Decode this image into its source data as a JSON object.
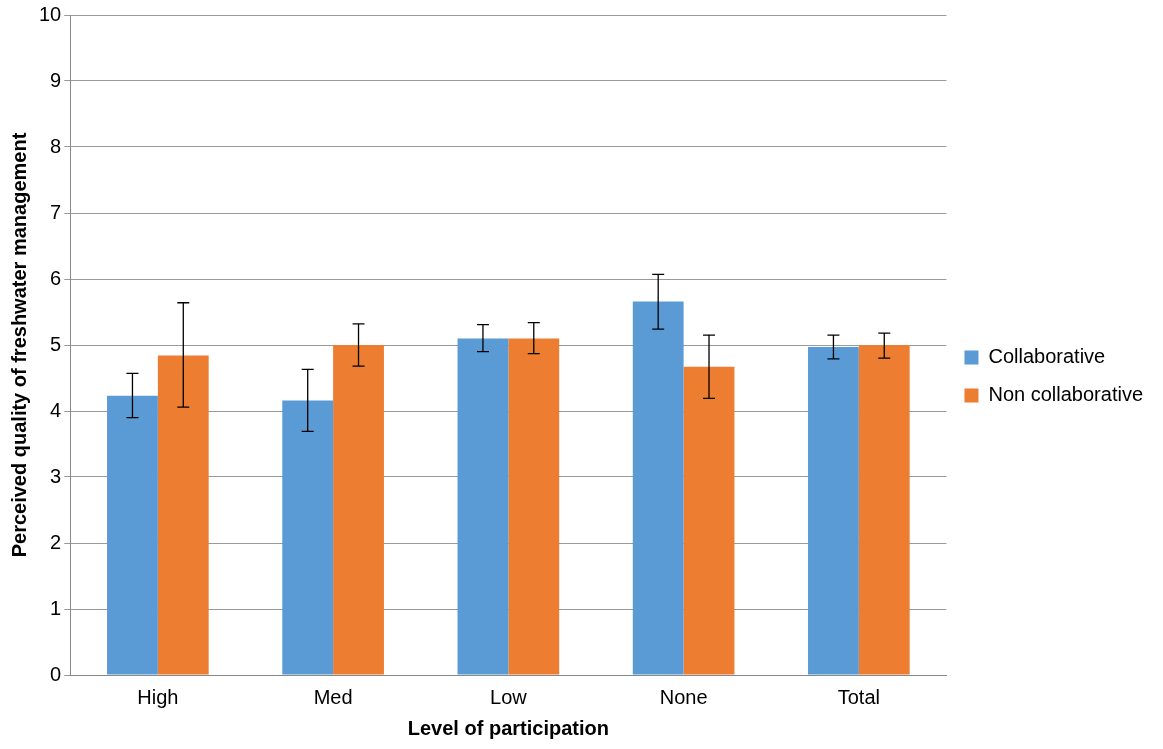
{
  "chart_data": {
    "type": "bar",
    "xlabel": "Level of participation",
    "ylabel": "Perceived quality of freshwater management",
    "categories": [
      "High",
      "Med",
      "Low",
      "None",
      "Total"
    ],
    "series": [
      {
        "name": "Collaborative",
        "color": "#5b9bd5",
        "values": [
          4.23,
          4.16,
          5.1,
          5.66,
          4.97
        ],
        "errors": [
          [
            3.9,
            4.57
          ],
          [
            3.69,
            4.63
          ],
          [
            4.9,
            5.31
          ],
          [
            5.24,
            6.07
          ],
          [
            4.79,
            5.15
          ]
        ]
      },
      {
        "name": "Non collaborative",
        "color": "#ed7d31",
        "values": [
          4.84,
          5.0,
          5.1,
          4.67,
          5.0
        ],
        "errors": [
          [
            4.06,
            5.64
          ],
          [
            4.68,
            5.32
          ],
          [
            4.87,
            5.34
          ],
          [
            4.19,
            5.15
          ],
          [
            4.8,
            5.18
          ]
        ]
      }
    ],
    "ylim": [
      0,
      10
    ],
    "yticks": [
      0,
      1,
      2,
      3,
      4,
      5,
      6,
      7,
      8,
      9,
      10
    ],
    "grid": "y",
    "legend": "right"
  }
}
